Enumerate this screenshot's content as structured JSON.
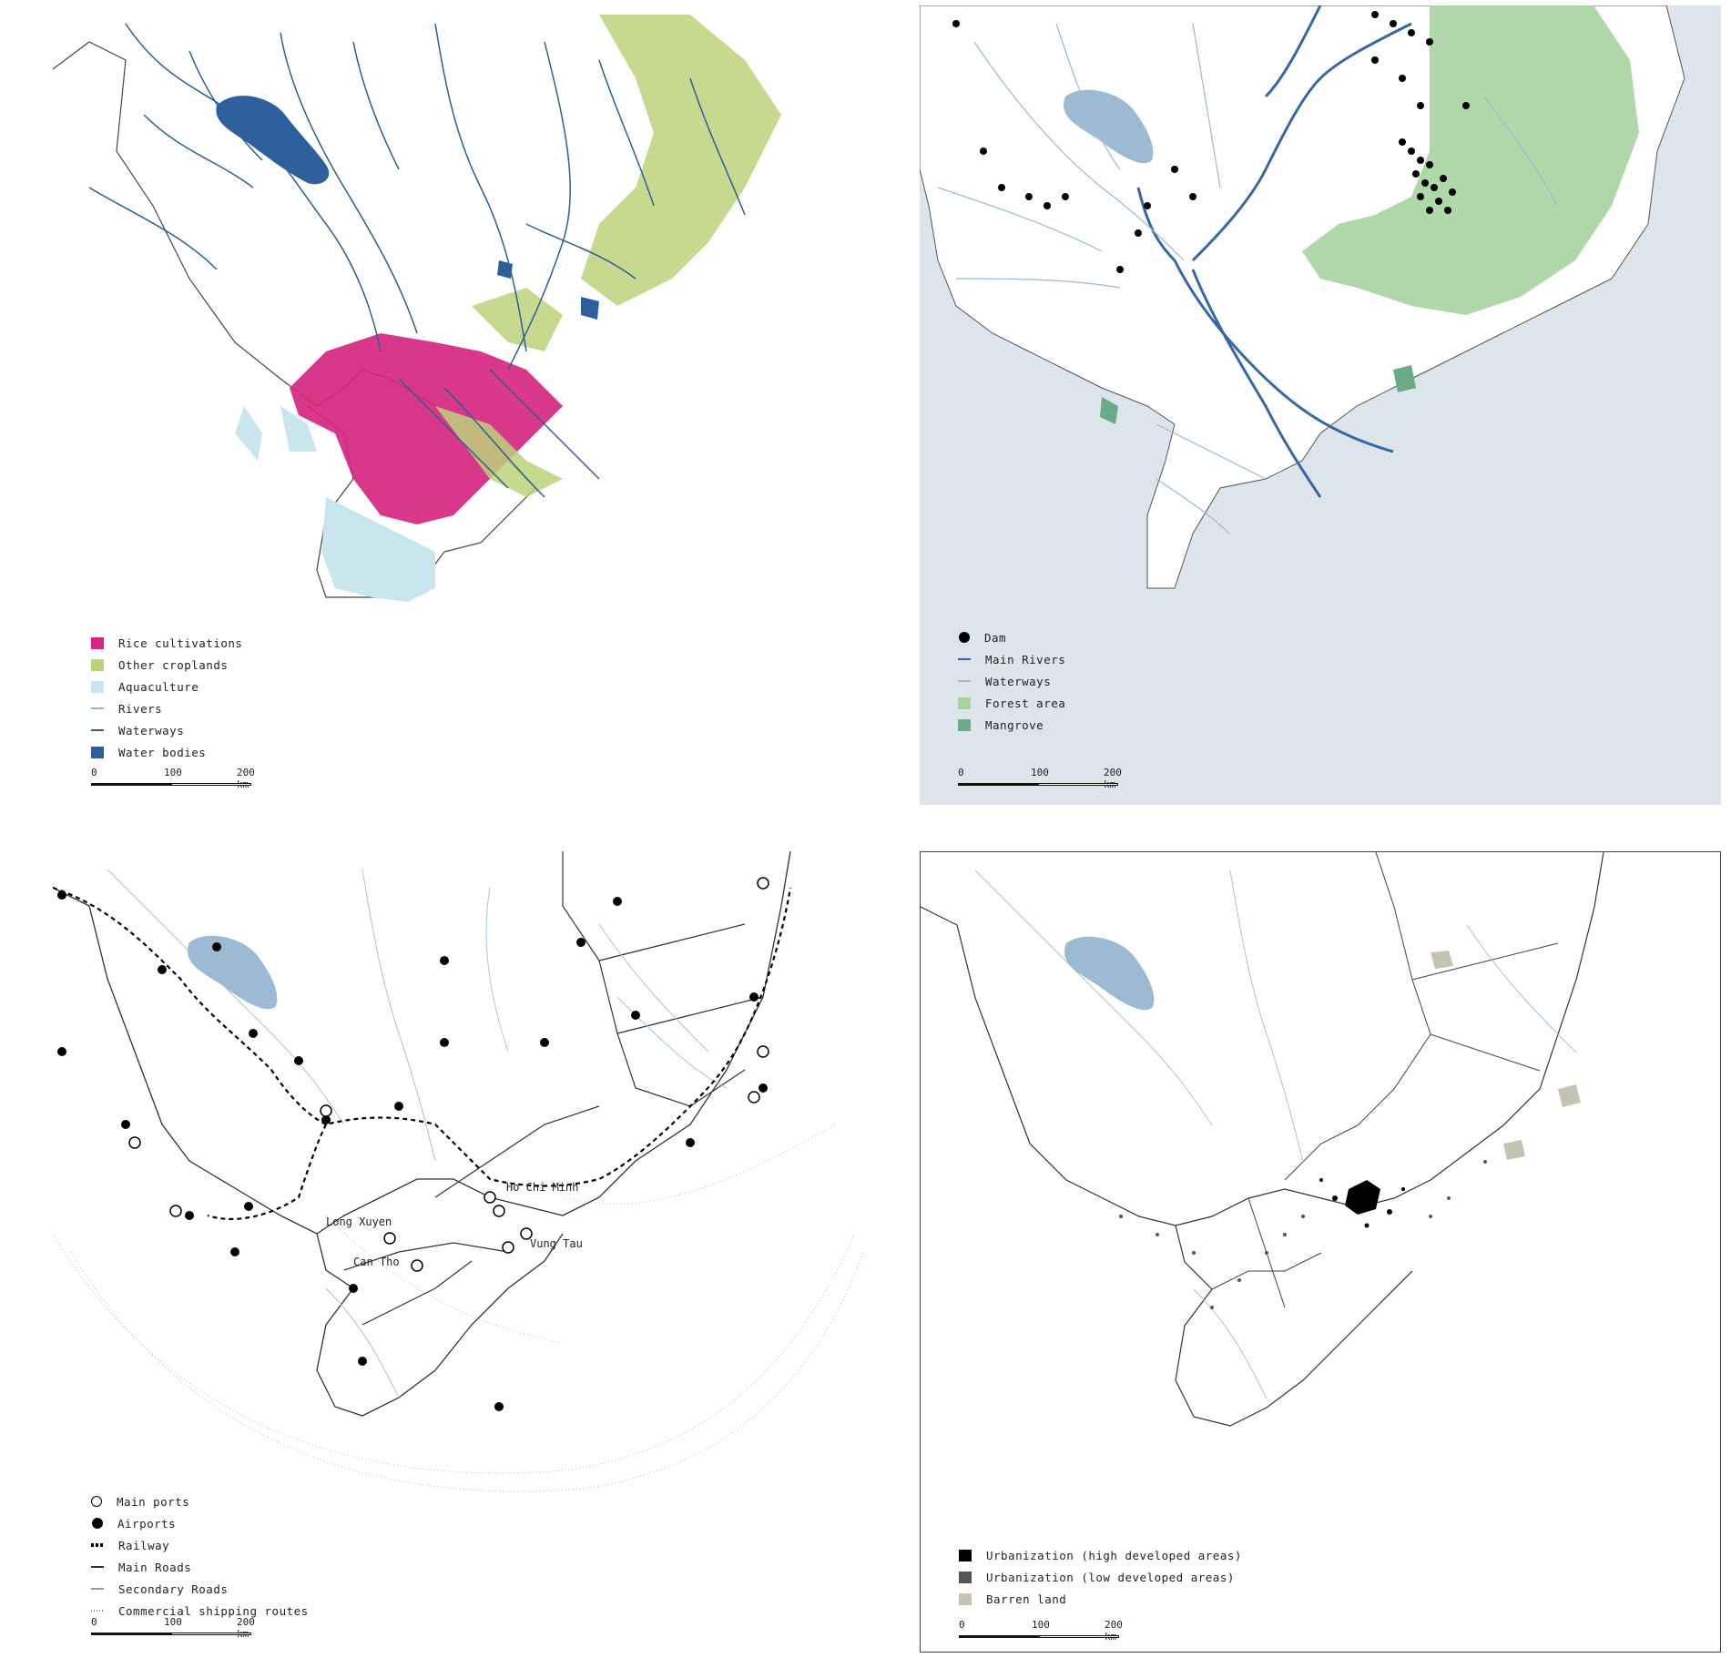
{
  "colors": {
    "rice": "#d6267f",
    "crop": "#bdd27a",
    "aqua": "#c9e6ef",
    "river_light": "#8fb3d3",
    "waterway_dark": "#2b5f96",
    "water_body": "#2c5f9c",
    "main_river": "#3567a6",
    "forest": "#a7d3a0",
    "mangrove": "#6aaa86",
    "sea": "#dde4ec",
    "lake_light": "#9cbad3",
    "urban_high": "#000000",
    "urban_low": "#555555",
    "barren": "#c7c3b2"
  },
  "panels": {
    "land_use": {
      "legend": [
        {
          "label": "Rice cultivations",
          "swatch": "box",
          "color": "#d6267f"
        },
        {
          "label": "Other croplands",
          "swatch": "box",
          "color": "#bdd27a"
        },
        {
          "label": "Aquaculture",
          "swatch": "box",
          "color": "#c9e6ef"
        },
        {
          "label": "Rivers",
          "swatch": "line",
          "color": "#8fb3d3"
        },
        {
          "label": "Waterways",
          "swatch": "line",
          "color": "#2b5f96"
        },
        {
          "label": "Water bodies",
          "swatch": "box",
          "color": "#2c5f9c"
        }
      ],
      "scale": {
        "l0": "0",
        "l1": "100",
        "l2": "200 km"
      }
    },
    "water": {
      "legend": [
        {
          "label": "Dam",
          "swatch": "dot",
          "color": "#000000"
        },
        {
          "label": "Main Rivers",
          "swatch": "line",
          "color": "#3567a6"
        },
        {
          "label": "Waterways",
          "swatch": "line",
          "color": "#9cbad3"
        },
        {
          "label": "Forest area",
          "swatch": "box",
          "color": "#a7d3a0"
        },
        {
          "label": "Mangrove",
          "swatch": "box",
          "color": "#6aaa86"
        }
      ],
      "scale": {
        "l0": "0",
        "l1": "100",
        "l2": "200 km"
      }
    },
    "transport": {
      "places": [
        "Ho Chi Minh",
        "Long Xuyen",
        "Can Tho",
        "Vung Tau"
      ],
      "legend": [
        {
          "label": "Main ports",
          "swatch": "ring",
          "color": "#000000"
        },
        {
          "label": "Airports",
          "swatch": "dot",
          "color": "#000000"
        },
        {
          "label": "Railway",
          "swatch": "rail",
          "color": "#000000"
        },
        {
          "label": "Main Roads",
          "swatch": "line",
          "color": "#333333"
        },
        {
          "label": "Secondary Roads",
          "swatch": "line",
          "color": "#999999"
        },
        {
          "label": "Commercial shipping routes",
          "swatch": "dotted",
          "color": "#888888"
        }
      ],
      "scale": {
        "l0": "0",
        "l1": "100",
        "l2": "200 km"
      }
    },
    "urban": {
      "legend": [
        {
          "label": "Urbanization (high developed areas)",
          "swatch": "box",
          "color": "#000000"
        },
        {
          "label": "Urbanization (low developed areas)",
          "swatch": "box",
          "color": "#555555"
        },
        {
          "label": "Barren land",
          "swatch": "box",
          "color": "#c7c3b2"
        }
      ],
      "scale": {
        "l0": "0",
        "l1": "100",
        "l2": "200 km"
      }
    }
  }
}
